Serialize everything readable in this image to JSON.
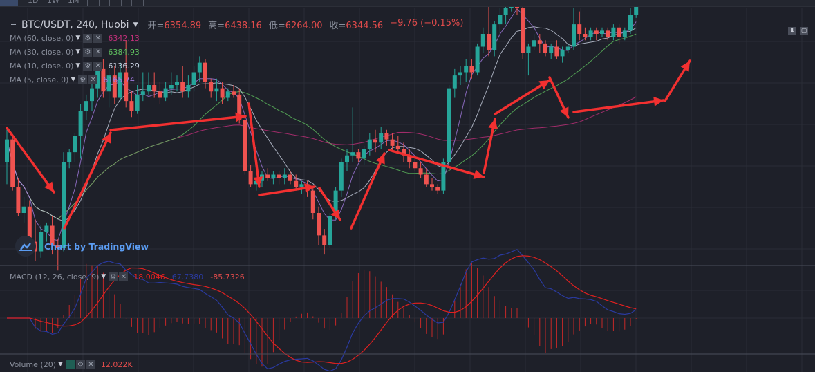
{
  "toolbar": {
    "items": [
      "1D",
      "1W",
      "1M"
    ]
  },
  "header": {
    "symbol": "BTC/USDT, 240, Huobi",
    "ohlc": [
      {
        "k": "开=",
        "v": "6354.89"
      },
      {
        "k": "高=",
        "v": "6438.16"
      },
      {
        "k": "低=",
        "v": "6264.00"
      },
      {
        "k": "收=",
        "v": "6344.56"
      }
    ],
    "change": "−9.76 (−0.15%)"
  },
  "indicators": [
    {
      "name": "MA (60, close, 0)",
      "value": "6342.13",
      "color": "#c2307a"
    },
    {
      "name": "MA (30, close, 0)",
      "value": "6384.93",
      "color": "#5fbf5f"
    },
    {
      "name": "MA (10, close, 0)",
      "value": "6136.29",
      "color": "#c8d0e0"
    },
    {
      "name": "MA (5, close, 0)",
      "value": "6165.74",
      "color": "#a27ae0"
    }
  ],
  "macd": {
    "name": "MACD (12, 26, close, 9)",
    "values": [
      {
        "v": "18.0046",
        "color": "#e02020"
      },
      {
        "v": "67.7380",
        "color": "#2a3aa0"
      },
      {
        "v": "-85.7326",
        "color": "#e04b4b"
      }
    ]
  },
  "volume": {
    "name": "Volume (20)",
    "value": "12.022K",
    "color": "#e04b4b"
  },
  "watermark": "Chart by TradingView",
  "colors": {
    "up": "#26a69a",
    "down": "#ef5350",
    "arrow": "#f23030",
    "grid": "#2a2d36"
  },
  "chart_data": {
    "type": "candlestick",
    "title": "BTC/USDT, 240, Huobi",
    "ylim": [
      5900,
      6700
    ],
    "candles": [
      [
        6220,
        6330,
        6150,
        6290
      ],
      [
        6290,
        6300,
        6130,
        6140
      ],
      [
        6140,
        6170,
        6050,
        6060
      ],
      [
        6060,
        6110,
        6030,
        6080
      ],
      [
        6080,
        6100,
        5950,
        5970
      ],
      [
        5970,
        6040,
        5910,
        5940
      ],
      [
        5940,
        6020,
        5920,
        6000
      ],
      [
        6000,
        6030,
        5970,
        6020
      ],
      [
        6020,
        6050,
        5930,
        5960
      ],
      [
        5960,
        5980,
        5880,
        5950
      ],
      [
        5950,
        6250,
        5940,
        6220
      ],
      [
        6220,
        6260,
        6200,
        6250
      ],
      [
        6250,
        6310,
        6220,
        6300
      ],
      [
        6300,
        6400,
        6230,
        6380
      ],
      [
        6380,
        6430,
        6350,
        6410
      ],
      [
        6410,
        6480,
        6380,
        6450
      ],
      [
        6450,
        6530,
        6420,
        6510
      ],
      [
        6510,
        6540,
        6420,
        6440
      ],
      [
        6440,
        6510,
        6390,
        6490
      ],
      [
        6490,
        6520,
        6400,
        6420
      ],
      [
        6420,
        6530,
        6410,
        6500
      ],
      [
        6500,
        6600,
        6390,
        6410
      ],
      [
        6410,
        6440,
        6360,
        6380
      ],
      [
        6380,
        6460,
        6370,
        6430
      ],
      [
        6430,
        6500,
        6410,
        6440
      ],
      [
        6440,
        6500,
        6430,
        6460
      ],
      [
        6460,
        6500,
        6420,
        6440
      ],
      [
        6440,
        6470,
        6400,
        6420
      ],
      [
        6420,
        6470,
        6410,
        6450
      ],
      [
        6450,
        6500,
        6430,
        6460
      ],
      [
        6460,
        6490,
        6440,
        6470
      ],
      [
        6470,
        6520,
        6420,
        6440
      ],
      [
        6440,
        6490,
        6420,
        6460
      ],
      [
        6460,
        6520,
        6440,
        6500
      ],
      [
        6500,
        6550,
        6470,
        6530
      ],
      [
        6530,
        6540,
        6450,
        6470
      ],
      [
        6470,
        6480,
        6420,
        6440
      ],
      [
        6440,
        6480,
        6410,
        6450
      ],
      [
        6450,
        6470,
        6400,
        6420
      ],
      [
        6420,
        6450,
        6410,
        6440
      ],
      [
        6440,
        6460,
        6420,
        6430
      ],
      [
        6430,
        6450,
        6340,
        6350
      ],
      [
        6350,
        6360,
        6180,
        6190
      ],
      [
        6190,
        6210,
        6140,
        6150
      ],
      [
        6150,
        6170,
        6130,
        6160
      ],
      [
        6160,
        6190,
        6140,
        6180
      ],
      [
        6180,
        6200,
        6160,
        6170
      ],
      [
        6170,
        6190,
        6150,
        6180
      ],
      [
        6180,
        6190,
        6150,
        6170
      ],
      [
        6170,
        6200,
        6150,
        6180
      ],
      [
        6180,
        6190,
        6150,
        6160
      ],
      [
        6160,
        6180,
        6130,
        6140
      ],
      [
        6140,
        6160,
        6120,
        6150
      ],
      [
        6150,
        6160,
        6110,
        6130
      ],
      [
        6130,
        6140,
        6040,
        6060
      ],
      [
        6060,
        6080,
        5960,
        5990
      ],
      [
        5990,
        6010,
        5930,
        5960
      ],
      [
        5960,
        6060,
        5950,
        6050
      ],
      [
        6050,
        6140,
        6040,
        6130
      ],
      [
        6130,
        6230,
        6110,
        6220
      ],
      [
        6220,
        6260,
        6190,
        6240
      ],
      [
        6240,
        6390,
        6220,
        6250
      ],
      [
        6250,
        6260,
        6220,
        6230
      ],
      [
        6230,
        6270,
        6210,
        6260
      ],
      [
        6260,
        6310,
        6240,
        6290
      ],
      [
        6290,
        6320,
        6250,
        6280
      ],
      [
        6280,
        6330,
        6260,
        6310
      ],
      [
        6310,
        6320,
        6270,
        6290
      ],
      [
        6290,
        6310,
        6250,
        6270
      ],
      [
        6270,
        6300,
        6250,
        6260
      ],
      [
        6260,
        6280,
        6220,
        6240
      ],
      [
        6240,
        6260,
        6200,
        6220
      ],
      [
        6220,
        6240,
        6190,
        6200
      ],
      [
        6200,
        6220,
        6170,
        6180
      ],
      [
        6180,
        6200,
        6140,
        6150
      ],
      [
        6150,
        6170,
        6130,
        6140
      ],
      [
        6140,
        6150,
        6120,
        6130
      ],
      [
        6130,
        6230,
        6120,
        6220
      ],
      [
        6220,
        6460,
        6200,
        6450
      ],
      [
        6450,
        6510,
        6420,
        6490
      ],
      [
        6490,
        6520,
        6460,
        6500
      ],
      [
        6500,
        6540,
        6470,
        6520
      ],
      [
        6520,
        6540,
        6480,
        6500
      ],
      [
        6500,
        6590,
        6490,
        6580
      ],
      [
        6580,
        6640,
        6560,
        6620
      ],
      [
        6620,
        6800,
        6550,
        6570
      ],
      [
        6570,
        6660,
        6550,
        6650
      ],
      [
        6650,
        6700,
        6620,
        6680
      ],
      [
        6680,
        6720,
        6650,
        6700
      ],
      [
        6700,
        6780,
        6690,
        6760
      ],
      [
        6760,
        6780,
        6680,
        6700
      ],
      [
        6700,
        6720,
        6540,
        6560
      ],
      [
        6560,
        6590,
        6490,
        6580
      ],
      [
        6580,
        6620,
        6570,
        6600
      ],
      [
        6600,
        6620,
        6560,
        6590
      ],
      [
        6590,
        6600,
        6550,
        6560
      ],
      [
        6560,
        6590,
        6540,
        6580
      ],
      [
        6580,
        6600,
        6540,
        6550
      ],
      [
        6550,
        6580,
        6530,
        6570
      ],
      [
        6570,
        6590,
        6560,
        6580
      ],
      [
        6580,
        6700,
        6570,
        6650
      ],
      [
        6650,
        6690,
        6600,
        6620
      ],
      [
        6620,
        6640,
        6600,
        6610
      ],
      [
        6610,
        6640,
        6600,
        6630
      ],
      [
        6630,
        6640,
        6600,
        6620
      ],
      [
        6620,
        6640,
        6610,
        6630
      ],
      [
        6630,
        6640,
        6600,
        6610
      ],
      [
        6610,
        6650,
        6600,
        6640
      ],
      [
        6640,
        6650,
        6590,
        6610
      ],
      [
        6610,
        6640,
        6600,
        6630
      ],
      [
        6630,
        6700,
        6620,
        6680
      ],
      [
        6680,
        6740,
        6670,
        6730
      ]
    ]
  }
}
